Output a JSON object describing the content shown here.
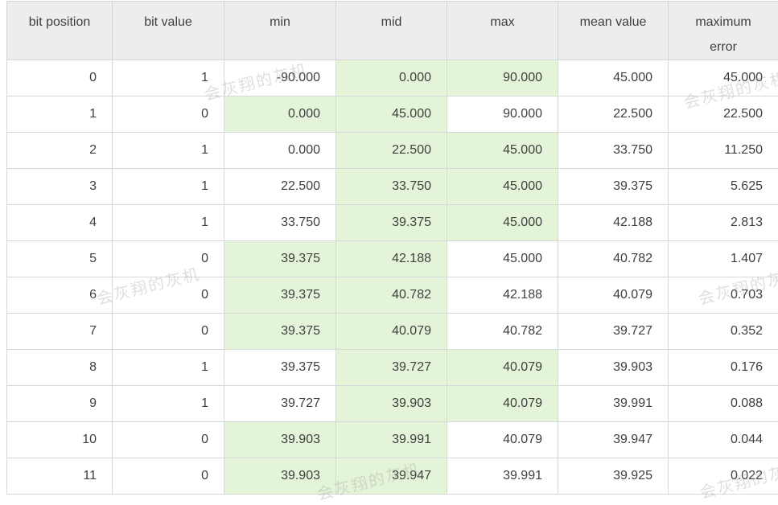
{
  "watermark": {
    "text": "会灰翔的灰机",
    "color": "#969696"
  },
  "table": {
    "header": {
      "bit_position": "bit position",
      "bit_value": "bit value",
      "min": "min",
      "mid": "mid",
      "max": "max",
      "mean_value": "mean value",
      "maximum_error": "maximum error"
    },
    "colors": {
      "header_bg": "#ededee",
      "highlight_bg": "#e4f4d8",
      "border": "#d8d8d8",
      "text": "#3f3f3f"
    },
    "rows": [
      {
        "bit_position": "0",
        "bit_value": "1",
        "min": "-90.000",
        "mid": "0.000",
        "max": "90.000",
        "mean_value": "45.000",
        "maximum_error": "45.000",
        "highlight": [
          "mid",
          "max"
        ]
      },
      {
        "bit_position": "1",
        "bit_value": "0",
        "min": "0.000",
        "mid": "45.000",
        "max": "90.000",
        "mean_value": "22.500",
        "maximum_error": "22.500",
        "highlight": [
          "min",
          "mid"
        ]
      },
      {
        "bit_position": "2",
        "bit_value": "1",
        "min": "0.000",
        "mid": "22.500",
        "max": "45.000",
        "mean_value": "33.750",
        "maximum_error": "11.250",
        "highlight": [
          "mid",
          "max"
        ]
      },
      {
        "bit_position": "3",
        "bit_value": "1",
        "min": "22.500",
        "mid": "33.750",
        "max": "45.000",
        "mean_value": "39.375",
        "maximum_error": "5.625",
        "highlight": [
          "mid",
          "max"
        ]
      },
      {
        "bit_position": "4",
        "bit_value": "1",
        "min": "33.750",
        "mid": "39.375",
        "max": "45.000",
        "mean_value": "42.188",
        "maximum_error": "2.813",
        "highlight": [
          "mid",
          "max"
        ]
      },
      {
        "bit_position": "5",
        "bit_value": "0",
        "min": "39.375",
        "mid": "42.188",
        "max": "45.000",
        "mean_value": "40.782",
        "maximum_error": "1.407",
        "highlight": [
          "min",
          "mid"
        ]
      },
      {
        "bit_position": "6",
        "bit_value": "0",
        "min": "39.375",
        "mid": "40.782",
        "max": "42.188",
        "mean_value": "40.079",
        "maximum_error": "0.703",
        "highlight": [
          "min",
          "mid"
        ]
      },
      {
        "bit_position": "7",
        "bit_value": "0",
        "min": "39.375",
        "mid": "40.079",
        "max": "40.782",
        "mean_value": "39.727",
        "maximum_error": "0.352",
        "highlight": [
          "min",
          "mid"
        ]
      },
      {
        "bit_position": "8",
        "bit_value": "1",
        "min": "39.375",
        "mid": "39.727",
        "max": "40.079",
        "mean_value": "39.903",
        "maximum_error": "0.176",
        "highlight": [
          "mid",
          "max"
        ]
      },
      {
        "bit_position": "9",
        "bit_value": "1",
        "min": "39.727",
        "mid": "39.903",
        "max": "40.079",
        "mean_value": "39.991",
        "maximum_error": "0.088",
        "highlight": [
          "mid",
          "max"
        ]
      },
      {
        "bit_position": "10",
        "bit_value": "0",
        "min": "39.903",
        "mid": "39.991",
        "max": "40.079",
        "mean_value": "39.947",
        "maximum_error": "0.044",
        "highlight": [
          "min",
          "mid"
        ]
      },
      {
        "bit_position": "11",
        "bit_value": "0",
        "min": "39.903",
        "mid": "39.947",
        "max": "39.991",
        "mean_value": "39.925",
        "maximum_error": "0.022",
        "highlight": [
          "min",
          "mid"
        ]
      }
    ]
  }
}
